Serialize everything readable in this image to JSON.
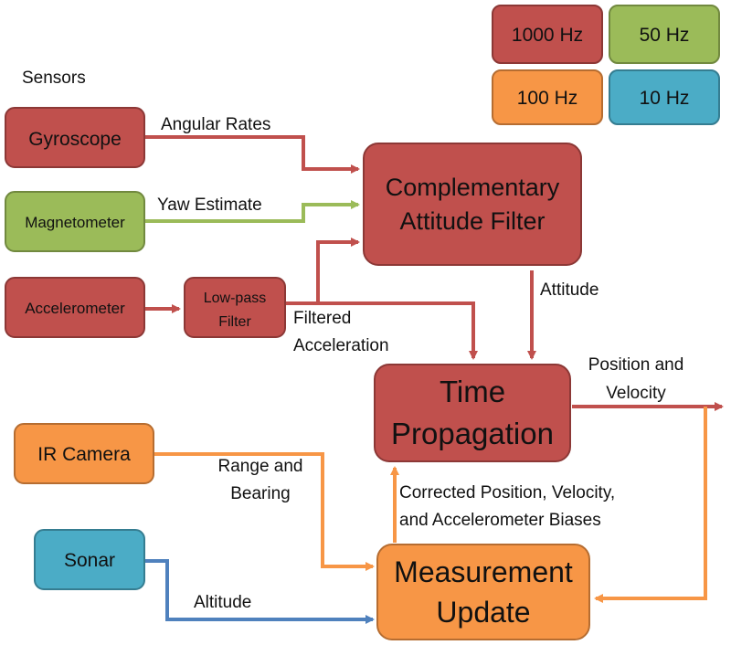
{
  "colors": {
    "red_fill": "#c0504d",
    "red_stroke": "#8c3836",
    "green_fill": "#9bbb59",
    "green_stroke": "#71893f",
    "orange_fill": "#f79646",
    "orange_stroke": "#b66d31",
    "blue_fill": "#4bacc6",
    "blue_stroke": "#357d91",
    "arrow_blue": "#4f81bd"
  },
  "legend": {
    "hz1000": "1000 Hz",
    "hz50": "50 Hz",
    "hz100": "100 Hz",
    "hz10": "10 Hz"
  },
  "heading": "Sensors",
  "nodes": {
    "gyroscope": "Gyroscope",
    "magnetometer": "Magnetometer",
    "accelerometer": "Accelerometer",
    "lowpass": [
      "Low-pass",
      "Filter"
    ],
    "complementary": [
      "Complementary",
      "Attitude Filter"
    ],
    "time_propagation": [
      "Time",
      "Propagation"
    ],
    "ir_camera": "IR Camera",
    "sonar": "Sonar",
    "measurement_update": [
      "Measurement",
      "Update"
    ]
  },
  "edge_labels": {
    "angular_rates": "Angular Rates",
    "yaw_estimate": "Yaw Estimate",
    "filtered": [
      "Filtered",
      "Acceleration"
    ],
    "attitude": "Attitude",
    "position_velocity": [
      "Position and",
      "Velocity"
    ],
    "range_bearing": [
      "Range and",
      "Bearing"
    ],
    "corrected": [
      "Corrected Position, Velocity,",
      "and Accelerometer Biases"
    ],
    "altitude": "Altitude"
  }
}
